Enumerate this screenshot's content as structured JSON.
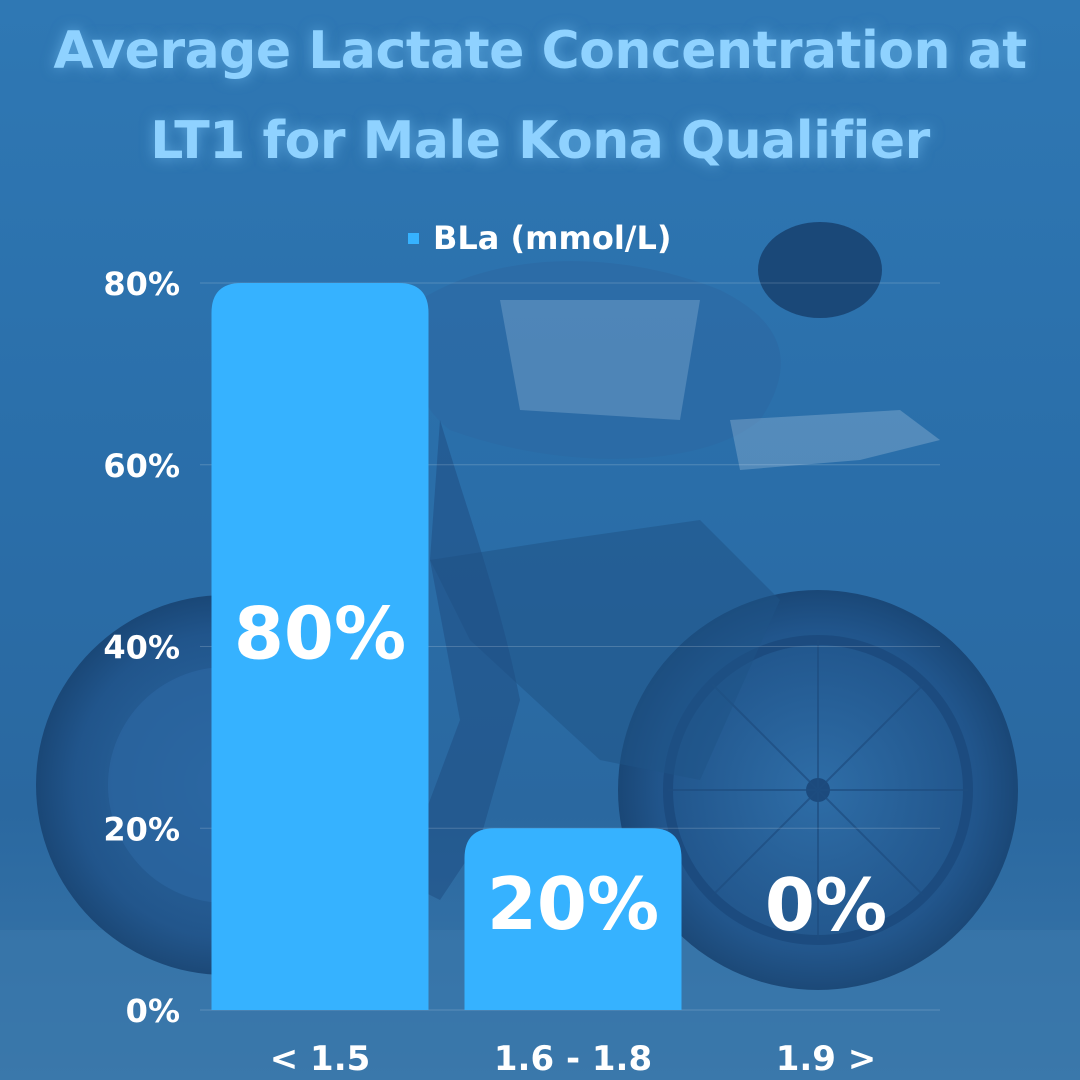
{
  "chart_data": {
    "type": "bar",
    "title_lines": [
      "Average Lactate Concentration at",
      "LT1 for Male Kona Qualifier"
    ],
    "categories": [
      "< 1.5",
      "1.6 - 1.8",
      "1.9 >"
    ],
    "series": [
      {
        "name": "BLa (mmol/L)",
        "values": [
          80,
          20,
          0
        ],
        "data_labels": [
          "80%",
          "20%",
          "0%"
        ]
      }
    ],
    "y_ticks": [
      "0%",
      "20%",
      "40%",
      "60%",
      "80%"
    ],
    "ylim": [
      0,
      80
    ],
    "grid": true,
    "legend": "top-center",
    "colors": {
      "bar": "#36b2ff",
      "title": "#8fd2ff",
      "text": "#ffffff",
      "background": "#2a6ea9"
    }
  }
}
